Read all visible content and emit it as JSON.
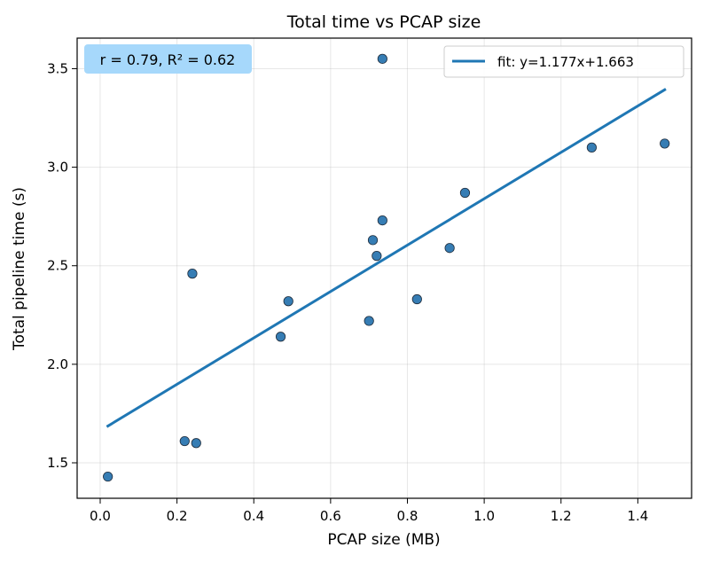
{
  "chart_data": {
    "type": "scatter",
    "title": "Total time vs PCAP size",
    "xlabel": "PCAP size (MB)",
    "ylabel": "Total pipeline time (s)",
    "xlim": [
      -0.06,
      1.54
    ],
    "ylim": [
      1.32,
      3.655
    ],
    "xticks": [
      0.0,
      0.2,
      0.4,
      0.6,
      0.8,
      1.0,
      1.2,
      1.4
    ],
    "xtick_labels": [
      "0.0",
      "0.2",
      "0.4",
      "0.6",
      "0.8",
      "1.0",
      "1.2",
      "1.4"
    ],
    "yticks": [
      1.5,
      2.0,
      2.5,
      3.0,
      3.5
    ],
    "ytick_labels": [
      "1.5",
      "2.0",
      "2.5",
      "3.0",
      "3.5"
    ],
    "grid": true,
    "points": {
      "x": [
        0.02,
        0.22,
        0.25,
        0.24,
        0.47,
        0.49,
        0.7,
        0.71,
        0.72,
        0.735,
        0.735,
        0.825,
        0.91,
        0.95,
        1.28,
        1.47
      ],
      "y": [
        1.43,
        1.61,
        1.6,
        2.46,
        2.14,
        2.32,
        2.22,
        2.63,
        2.55,
        2.73,
        3.55,
        2.33,
        2.59,
        2.87,
        3.1,
        3.12
      ],
      "color": "#2b76b0",
      "edge_color": "#1f2d3d"
    },
    "fit": {
      "slope": 1.177,
      "intercept": 1.663,
      "x_range": [
        0.02,
        1.47
      ],
      "color": "#1f77b4",
      "legend_label": "fit: y=1.177x+1.663"
    },
    "legend": {
      "position": "top-right"
    },
    "annotation": {
      "r_text": "r = 0.79, R² = 0.62",
      "position": "top-left",
      "background": "#a6d8fb"
    }
  }
}
